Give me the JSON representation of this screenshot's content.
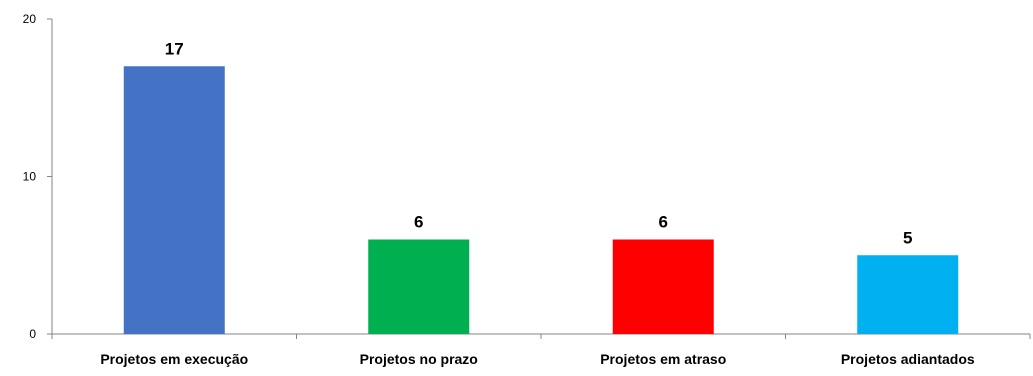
{
  "chart_data": {
    "type": "bar",
    "categories": [
      "Projetos em execução",
      "Projetos no prazo",
      "Projetos em atraso",
      "Projetos adiantados"
    ],
    "values": [
      17,
      6,
      6,
      5
    ],
    "colors": [
      "#4472C4",
      "#00B050",
      "#FF0000",
      "#00B0F0"
    ],
    "data_labels": [
      "17",
      "6",
      "6",
      "5"
    ],
    "yticks": [
      0,
      10,
      20
    ],
    "ytick_labels": [
      "0",
      "10",
      "20"
    ],
    "ylim": [
      0,
      20
    ],
    "title": "",
    "xlabel": "",
    "ylabel": "",
    "grid": false,
    "legend": false
  }
}
